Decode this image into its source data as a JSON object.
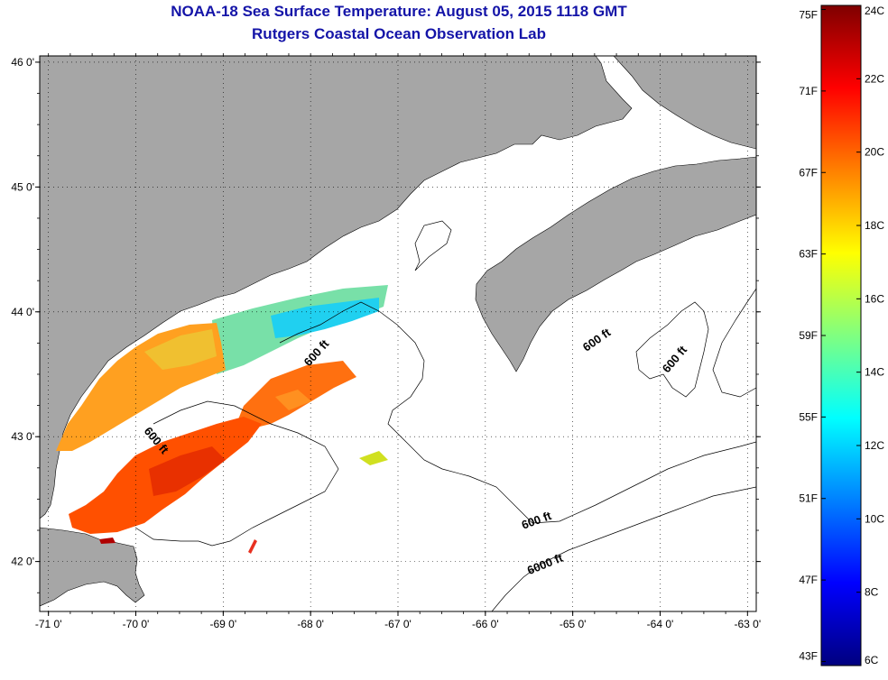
{
  "header": {
    "title": "NOAA-18 Sea Surface Temperature:  August 05, 2015 1118 GMT",
    "subtitle": "Rutgers Coastal Ocean Observation Lab"
  },
  "map": {
    "lon_range": [
      -71.1,
      -62.9
    ],
    "lat_range": [
      41.6,
      46.05
    ],
    "lon_ticks": [
      {
        "value": -71,
        "label": "-71 0'"
      },
      {
        "value": -70,
        "label": "-70 0'"
      },
      {
        "value": -69,
        "label": "-69 0'"
      },
      {
        "value": -68,
        "label": "-68 0'"
      },
      {
        "value": -67,
        "label": "-67 0'"
      },
      {
        "value": -66,
        "label": "-66 0'"
      },
      {
        "value": -65,
        "label": "-65 0'"
      },
      {
        "value": -64,
        "label": "-64 0'"
      },
      {
        "value": -63,
        "label": "-63 0'"
      }
    ],
    "lat_ticks": [
      {
        "value": 46,
        "label": "46 0'"
      },
      {
        "value": 45,
        "label": "45 0'"
      },
      {
        "value": 44,
        "label": "44 0'"
      },
      {
        "value": 43,
        "label": "43 0'"
      },
      {
        "value": 42,
        "label": "42 0'"
      }
    ],
    "grid": "dotted",
    "land_color": "#a6a6a6",
    "water_color": "#ffffff",
    "contour_labels": [
      {
        "text": "600 ft",
        "lon": -67.9,
        "lat": 43.65,
        "rotate": -48
      },
      {
        "text": "600 ft",
        "lon": -69.8,
        "lat": 42.95,
        "rotate": 50
      },
      {
        "text": "600 ft",
        "lon": -64.7,
        "lat": 43.75,
        "rotate": -35
      },
      {
        "text": "600 ft",
        "lon": -63.8,
        "lat": 43.6,
        "rotate": -50
      },
      {
        "text": "600 ft",
        "lon": -65.4,
        "lat": 42.3,
        "rotate": -20
      },
      {
        "text": "6000 ft",
        "lon": -65.3,
        "lat": 41.95,
        "rotate": -22
      }
    ]
  },
  "colorbar": {
    "gradient_colors": [
      "#00007f",
      "#0000ff",
      "#0080ff",
      "#00ffff",
      "#80ff80",
      "#ffff00",
      "#ff8000",
      "#ff0000",
      "#7f0000"
    ],
    "fahrenheit_labels": [
      {
        "value": 75,
        "label": "75F"
      },
      {
        "value": 71,
        "label": "71F"
      },
      {
        "value": 67,
        "label": "67F"
      },
      {
        "value": 63,
        "label": "63F"
      },
      {
        "value": 59,
        "label": "59F"
      },
      {
        "value": 55,
        "label": "55F"
      },
      {
        "value": 51,
        "label": "51F"
      },
      {
        "value": 47,
        "label": "47F"
      },
      {
        "value": 43,
        "label": "43F"
      }
    ],
    "celsius_labels": [
      {
        "value": 24,
        "label": "24C"
      },
      {
        "value": 22,
        "label": "22C"
      },
      {
        "value": 20,
        "label": "20C"
      },
      {
        "value": 18,
        "label": "18C"
      },
      {
        "value": 16,
        "label": "16C"
      },
      {
        "value": 14,
        "label": "14C"
      },
      {
        "value": 12,
        "label": "12C"
      },
      {
        "value": 10,
        "label": "10C"
      },
      {
        "value": 8,
        "label": "8C"
      },
      {
        "value": 6,
        "label": "6C"
      }
    ]
  }
}
